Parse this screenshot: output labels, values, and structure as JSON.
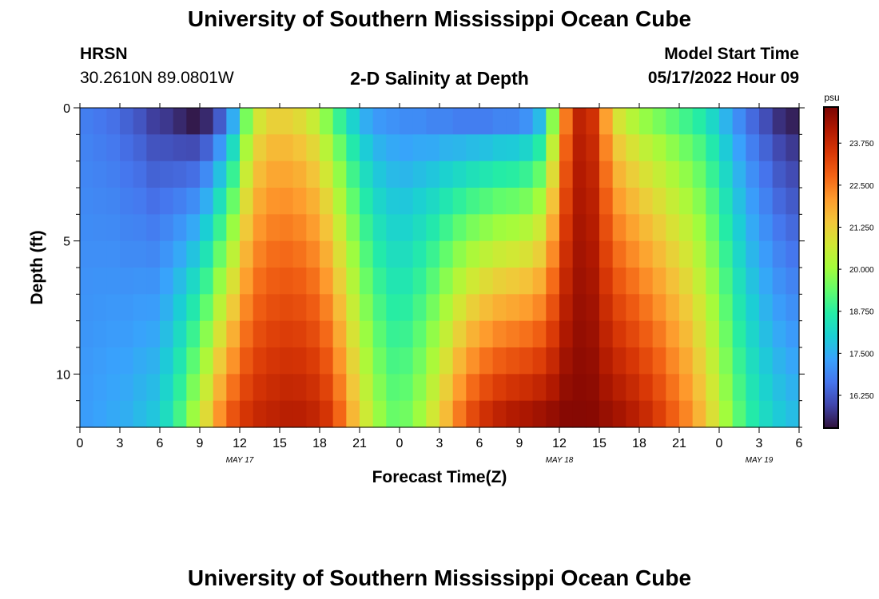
{
  "header": {
    "title": "University of Southern Mississippi Ocean Cube",
    "station": "HRSN",
    "coordinates": "30.2610N  89.0801W",
    "plot_title": "2-D Salinity at Depth",
    "model_start_label": "Model Start Time",
    "model_start_value": "05/17/2022 Hour 09"
  },
  "footer": {
    "title": "University of Southern Mississippi Ocean Cube"
  },
  "chart_data": {
    "type": "heatmap",
    "title": "2-D Salinity at Depth",
    "xlabel": "Forecast Time(Z)",
    "ylabel": "Depth (ft)",
    "x_tick_labels": [
      "0",
      "3",
      "6",
      "9",
      "12",
      "15",
      "18",
      "21",
      "0",
      "3",
      "6",
      "9",
      "12",
      "15",
      "18",
      "21",
      "0",
      "3",
      "6"
    ],
    "x_range_hours": [
      0,
      54
    ],
    "date_labels": [
      {
        "label": "MAY 17",
        "hour": 12
      },
      {
        "label": "MAY 18",
        "hour": 36
      },
      {
        "label": "MAY 19",
        "hour": 51
      }
    ],
    "y_tick_labels": [
      "0",
      "5",
      "10"
    ],
    "y_tick_values": [
      0,
      5,
      10
    ],
    "y_range_ft": [
      0,
      12
    ],
    "depth_levels_ft": [
      0,
      1,
      2,
      3,
      4,
      5,
      6,
      7,
      8,
      9,
      10,
      11,
      12
    ],
    "colorbar": {
      "unit": "psu",
      "range": [
        15.3,
        24.8
      ],
      "tick_labels": [
        "16.250",
        "17.500",
        "18.750",
        "20.000",
        "21.250",
        "22.500",
        "23.750"
      ],
      "tick_values": [
        16.25,
        17.5,
        18.75,
        20.0,
        21.25,
        22.5,
        23.75
      ],
      "colors": [
        "#30123b",
        "#4145ab",
        "#4675ed",
        "#39a2fc",
        "#1bcfd4",
        "#24eca6",
        "#61fc6c",
        "#a4fc3b",
        "#d1e834",
        "#f3c63a",
        "#fe9b2d",
        "#f36315",
        "#d93806",
        "#b11901",
        "#7a0403"
      ]
    },
    "salinity_grid_note_rows_are_depth_cols_are_hours": true,
    "surface_salinity_by_hour": [
      16.8,
      16.7,
      16.6,
      16.4,
      16.2,
      15.9,
      15.8,
      15.6,
      15.4,
      15.6,
      16.3,
      17.5,
      19.6,
      20.8,
      21.2,
      21.2,
      21.0,
      20.6,
      19.8,
      18.9,
      18.1,
      17.5,
      17.2,
      17.1,
      17.0,
      17.0,
      16.9,
      16.9,
      16.8,
      16.8,
      16.8,
      16.9,
      16.9,
      17.1,
      17.7,
      19.8,
      22.5,
      23.9,
      23.6,
      22.0,
      20.8,
      20.3,
      19.9,
      19.6,
      19.3,
      19.0,
      18.7,
      18.2,
      17.6,
      17.0,
      16.5,
      16.1,
      15.7,
      15.5,
      15.4
    ],
    "bottom_salinity_by_hour": [
      17.3,
      17.4,
      17.5,
      17.6,
      17.8,
      18.0,
      18.5,
      19.3,
      20.3,
      21.4,
      22.6,
      23.4,
      23.8,
      24.0,
      24.1,
      24.2,
      24.2,
      24.1,
      23.8,
      23.0,
      21.9,
      20.9,
      20.1,
      19.6,
      19.7,
      20.2,
      21.0,
      21.9,
      22.9,
      23.6,
      24.1,
      24.4,
      24.6,
      24.7,
      24.8,
      24.8,
      24.8,
      24.7,
      24.7,
      24.6,
      24.5,
      24.3,
      24.0,
      23.6,
      23.1,
      22.6,
      21.9,
      21.1,
      20.2,
      19.4,
      18.8,
      18.4,
      18.1,
      17.9,
      17.8
    ]
  }
}
